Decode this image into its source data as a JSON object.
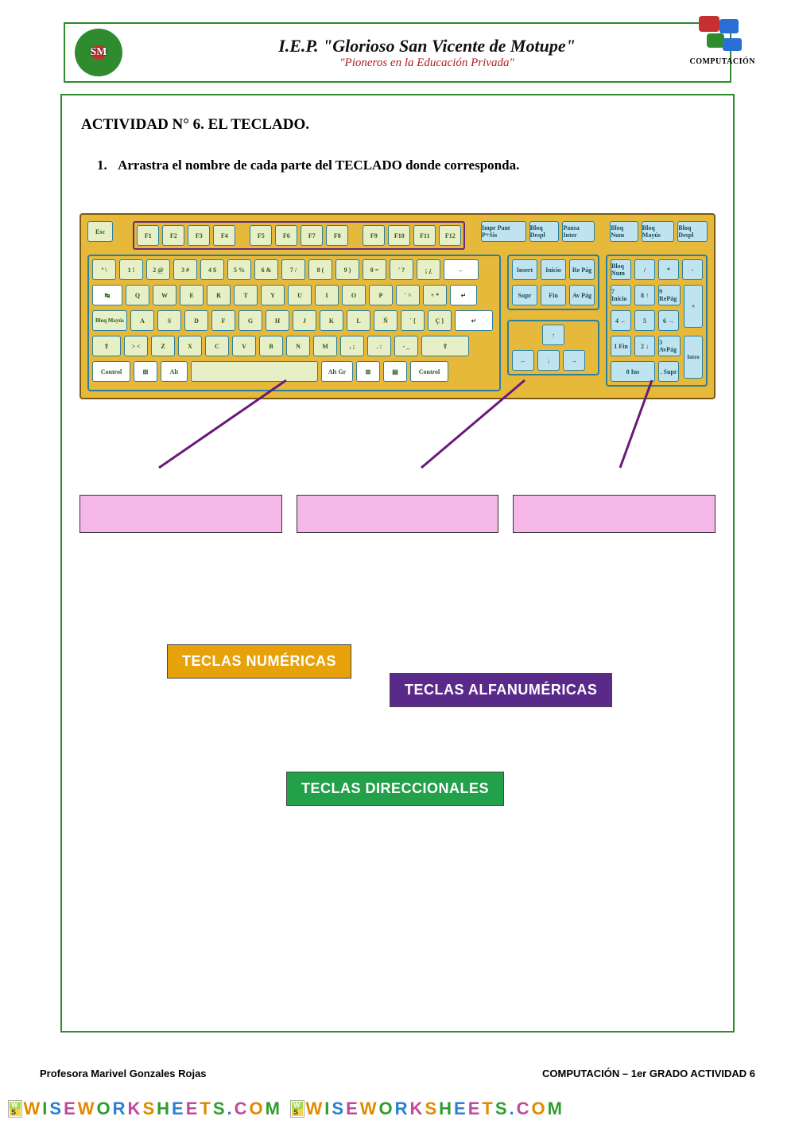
{
  "header": {
    "school_name": "I.E.P. \"Glorioso San Vicente de Motupe\"",
    "motto": "\"Pioneros en la Educación Privada\"",
    "logo_text": "SM",
    "subject_label": "COMPUTACIÓN"
  },
  "activity": {
    "title": "ACTIVIDAD N° 6. EL TECLADO.",
    "instruction_number": "1.",
    "instruction_text": "Arrastra el nombre de cada parte del TECLADO donde corresponda."
  },
  "keyboard": {
    "esc": "Esc",
    "function_keys": [
      "F1",
      "F2",
      "F3",
      "F4",
      "F5",
      "F6",
      "F7",
      "F8",
      "F9",
      "F10",
      "F11",
      "F12"
    ],
    "top_right_trio": [
      "Impr Pant P+Sis",
      "Bloq Despl",
      "Pausa Inter"
    ],
    "indicator_trio": [
      "Bloq Num",
      "Bloq Mayús",
      "Bloq Despl"
    ],
    "number_row": [
      "º \\",
      "1 !",
      "2 @",
      "3 #",
      "4 $",
      "5 %",
      "6 &",
      "7 /",
      "8 (",
      "9 )",
      "0 =",
      "' ?",
      "¡ ¿",
      "←"
    ],
    "qwerty_row": [
      "↹",
      "Q",
      "W",
      "E",
      "R",
      "T",
      "Y",
      "U",
      "I",
      "O",
      "P",
      "` ^",
      "+ *",
      "↵"
    ],
    "caps": "Bloq Mayús",
    "asdf_row": [
      "A",
      "S",
      "D",
      "F",
      "G",
      "H",
      "J",
      "K",
      "L",
      "Ñ",
      "´ {",
      "Ç }"
    ],
    "shift_left": "⇧",
    "zxcv_row": [
      "> <",
      "Z",
      "X",
      "C",
      "V",
      "B",
      "N",
      "M",
      ", ;",
      ". :",
      "- _"
    ],
    "shift_right": "⇧",
    "bottom_row": [
      "Control",
      "⊞",
      "Alt",
      "",
      "Alt Gr",
      "⊞",
      "▤",
      "Control"
    ],
    "nav_block_top": [
      "Insert",
      "Inicio",
      "Re Pág"
    ],
    "nav_block_bot": [
      "Supr",
      "Fin",
      "Av Pág"
    ],
    "arrow_up": "↑",
    "arrow_left": "←",
    "arrow_down": "↓",
    "arrow_right": "→",
    "numpad": {
      "r1": [
        "Bloq Num",
        "/",
        "*",
        "-"
      ],
      "r2": [
        "7 Inicio",
        "8 ↑",
        "9 RePág"
      ],
      "plus": "+",
      "r3": [
        "4 ←",
        "5",
        "6 →"
      ],
      "r4": [
        "1 Fin",
        "2 ↓",
        "3 AvPág"
      ],
      "enter": "Intro",
      "r5": [
        "0 Ins",
        ". Supr"
      ]
    }
  },
  "drop_targets": {
    "count": 3
  },
  "labels": {
    "numeric": "TECLAS NUMÉRICAS",
    "alphanumeric": "TECLAS ALFANUMÉRICAS",
    "directional": "TECLAS DIRECCIONALES"
  },
  "footer": {
    "teacher": "Profesora Marivel Gonzales Rojas",
    "right": "COMPUTACIÓN – 1er GRADO   ACTIVIDAD 6",
    "watermark": "WISEWORKSHEETS.COM"
  },
  "colors": {
    "border_green": "#2e8b2e",
    "kb_bg": "#e7b93a",
    "key_bg": "#e6efc6",
    "key_blue": "#bfe4ef",
    "drop_bg": "#f5b6e8",
    "chip_orange": "#e6a208",
    "chip_purple": "#5a2a8a",
    "chip_green": "#23a04a",
    "pointer_line": "#6a1a7a"
  }
}
